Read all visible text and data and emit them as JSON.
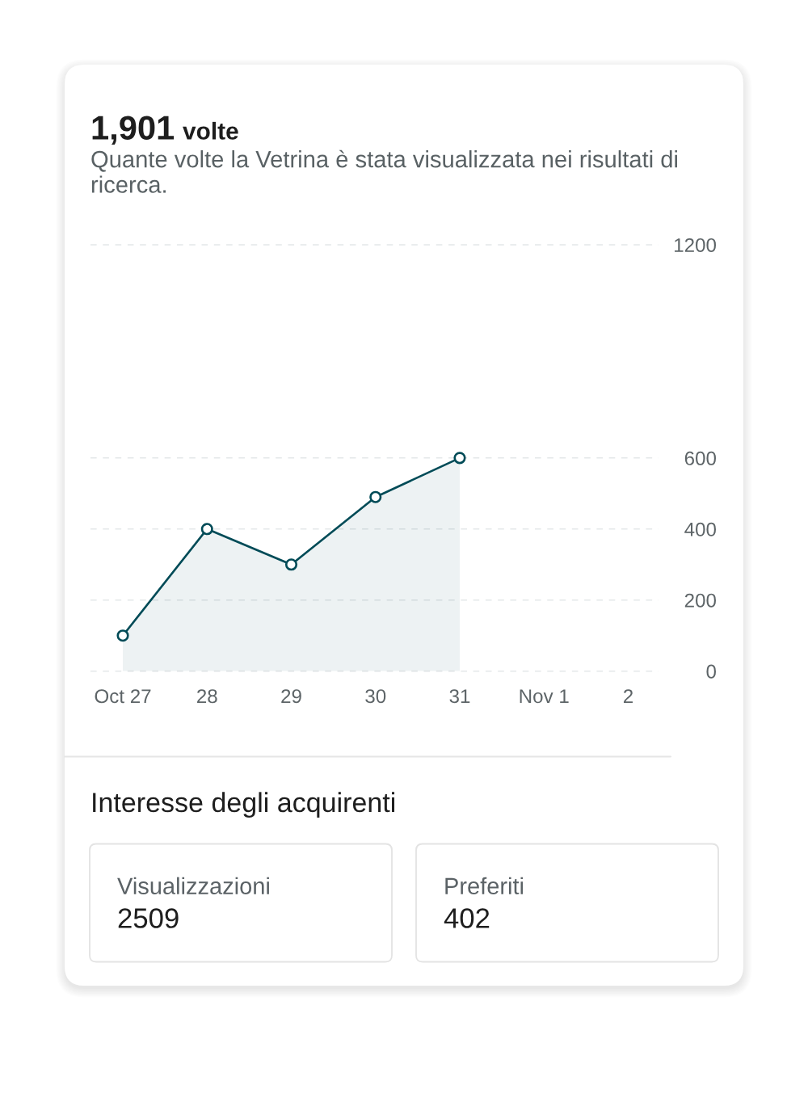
{
  "chart_data": [
    {
      "type": "area",
      "title": "1,901 volte",
      "subtitle": "Quante volte la Vetrina è stata visualizzata nei risultati di ricerca.",
      "categories": [
        "Oct 27",
        "28",
        "29",
        "30",
        "31",
        "Nov 1",
        "2"
      ],
      "series": [
        {
          "color": "#004b57",
          "values": [
            100,
            400,
            300,
            490,
            600,
            null,
            null
          ]
        }
      ],
      "ylim": [
        0,
        1200
      ],
      "yticks": [
        0,
        200,
        400,
        600,
        1200
      ],
      "grid": "y",
      "marker": "circle",
      "line_style": "solid"
    },
    {
      "type": "other",
      "title": "Interesse degli acquirenti",
      "categories": [
        "Visualizzazioni",
        "Preferiti"
      ],
      "values": [
        2509,
        402
      ],
      "data_labels": true
    }
  ]
}
